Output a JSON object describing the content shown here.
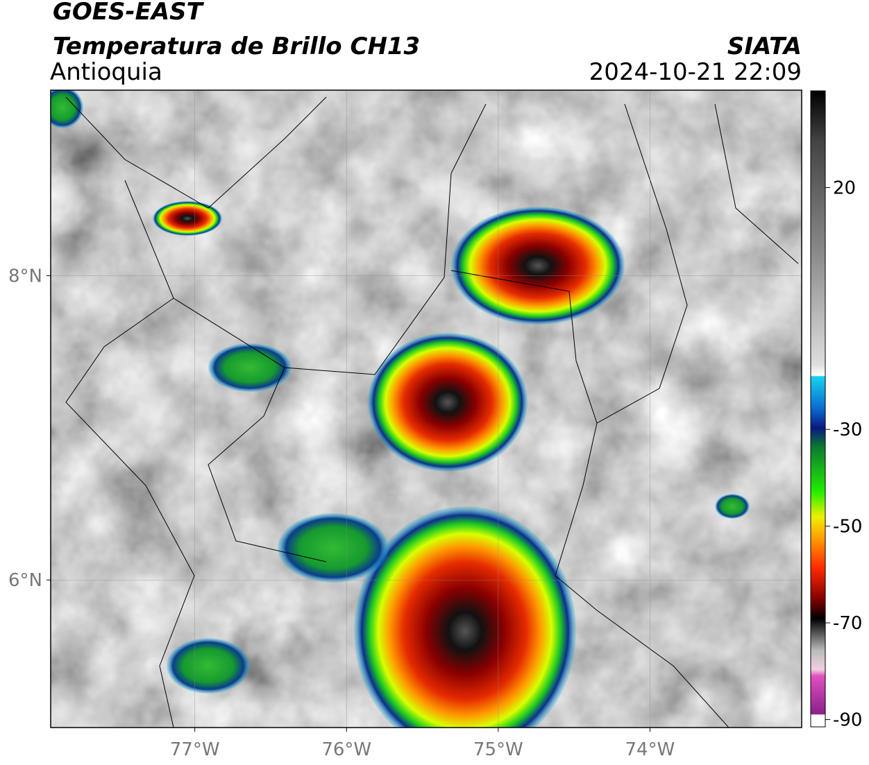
{
  "header": {
    "title": "GOES-EAST",
    "subtitle": "Temperatura de Brillo CH13",
    "region": "Antioquia",
    "source": "SIATA",
    "timestamp": "2024-10-21 22:09"
  },
  "chart_data": {
    "type": "map",
    "xlim": [
      -77.95,
      -73.0
    ],
    "ylim": [
      5.03,
      9.22
    ],
    "xticks": [
      {
        "value": -77,
        "label": "77°W"
      },
      {
        "value": -76,
        "label": "76°W"
      },
      {
        "value": -75,
        "label": "75°W"
      },
      {
        "value": -74,
        "label": "74°W"
      }
    ],
    "yticks": [
      {
        "value": 6,
        "label": "6°N"
      },
      {
        "value": 8,
        "label": "8°N"
      }
    ],
    "grid": true,
    "colorbar": {
      "lim": [
        -91.5,
        40
      ],
      "ticks": [
        20,
        -30,
        -50,
        -70,
        -90
      ]
    }
  }
}
